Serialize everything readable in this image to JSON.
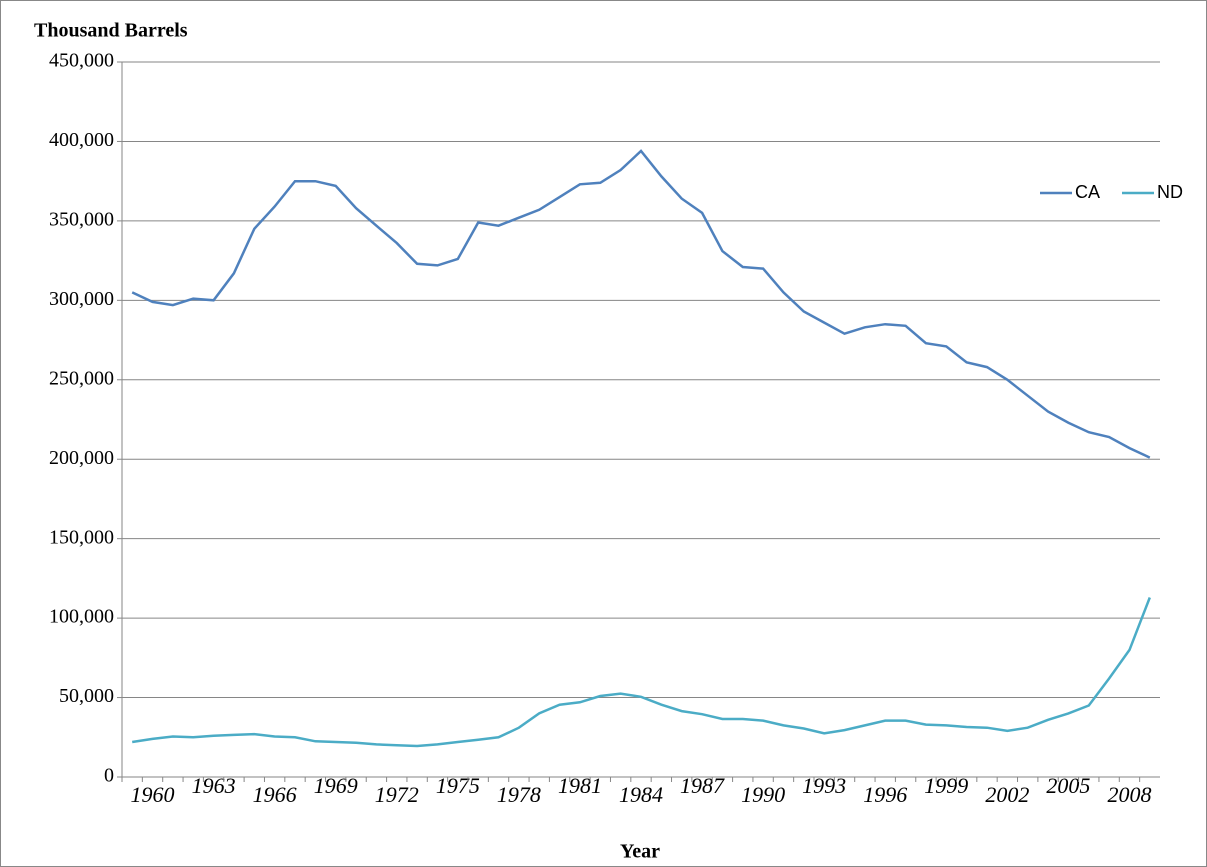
{
  "chart_data": {
    "type": "line",
    "y_axis_label": "Thousand Barrels",
    "x_axis_label": "Year",
    "categories": [
      null,
      "1960",
      null,
      null,
      "1963",
      null,
      null,
      "1966",
      null,
      null,
      "1969",
      null,
      null,
      "1972",
      null,
      null,
      "1975",
      null,
      null,
      "1978",
      null,
      null,
      "1981",
      null,
      null,
      "1984",
      null,
      null,
      "1987",
      null,
      null,
      "1990",
      null,
      null,
      "1993",
      null,
      null,
      "1996",
      null,
      null,
      "1999",
      null,
      null,
      "2002",
      null,
      null,
      "2005",
      null,
      null,
      "2008",
      null
    ],
    "series": [
      {
        "name": "CA",
        "color": "#4f81bd",
        "values": [
          305000,
          299000,
          297000,
          301000,
          300000,
          317000,
          345000,
          359000,
          375000,
          375000,
          372000,
          358000,
          347000,
          336000,
          323000,
          322000,
          326000,
          349000,
          347000,
          352000,
          357000,
          365000,
          373000,
          374000,
          382000,
          394000,
          378000,
          364000,
          355000,
          331000,
          321000,
          320000,
          305000,
          293000,
          286000,
          279000,
          283000,
          285000,
          284000,
          273000,
          271000,
          261000,
          258000,
          250000,
          240000,
          230000,
          223000,
          217000,
          214000,
          207000,
          201000
        ]
      },
      {
        "name": "ND",
        "color": "#4bacc6",
        "values": [
          22000,
          24000,
          25500,
          25000,
          26000,
          26500,
          27000,
          25500,
          25000,
          22500,
          22000,
          21500,
          20500,
          20000,
          19500,
          20500,
          22000,
          23500,
          25000,
          31000,
          40000,
          45500,
          47000,
          51000,
          52500,
          50500,
          45500,
          41500,
          39500,
          36500,
          36500,
          35500,
          32500,
          30500,
          27500,
          29500,
          32500,
          35500,
          35500,
          33000,
          32500,
          31500,
          31000,
          29000,
          31000,
          36000,
          40000,
          45000,
          62000,
          80000,
          113000
        ]
      }
    ],
    "ylim": [
      0,
      450000
    ],
    "yticks": [
      0,
      {
        "value": 50000,
        "label": "50,000"
      },
      {
        "value": 100000,
        "label": "100,000"
      },
      {
        "value": 150000,
        "label": "150,000"
      },
      {
        "value": 200000,
        "label": "200,000"
      },
      {
        "value": 250000,
        "label": "250,000"
      },
      {
        "value": 300000,
        "label": "300,000"
      },
      {
        "value": 350000,
        "label": "350,000"
      },
      {
        "value": 400000,
        "label": "400,000"
      },
      {
        "value": 450000,
        "label": "450,000"
      }
    ],
    "grid": true,
    "legend": "right"
  }
}
